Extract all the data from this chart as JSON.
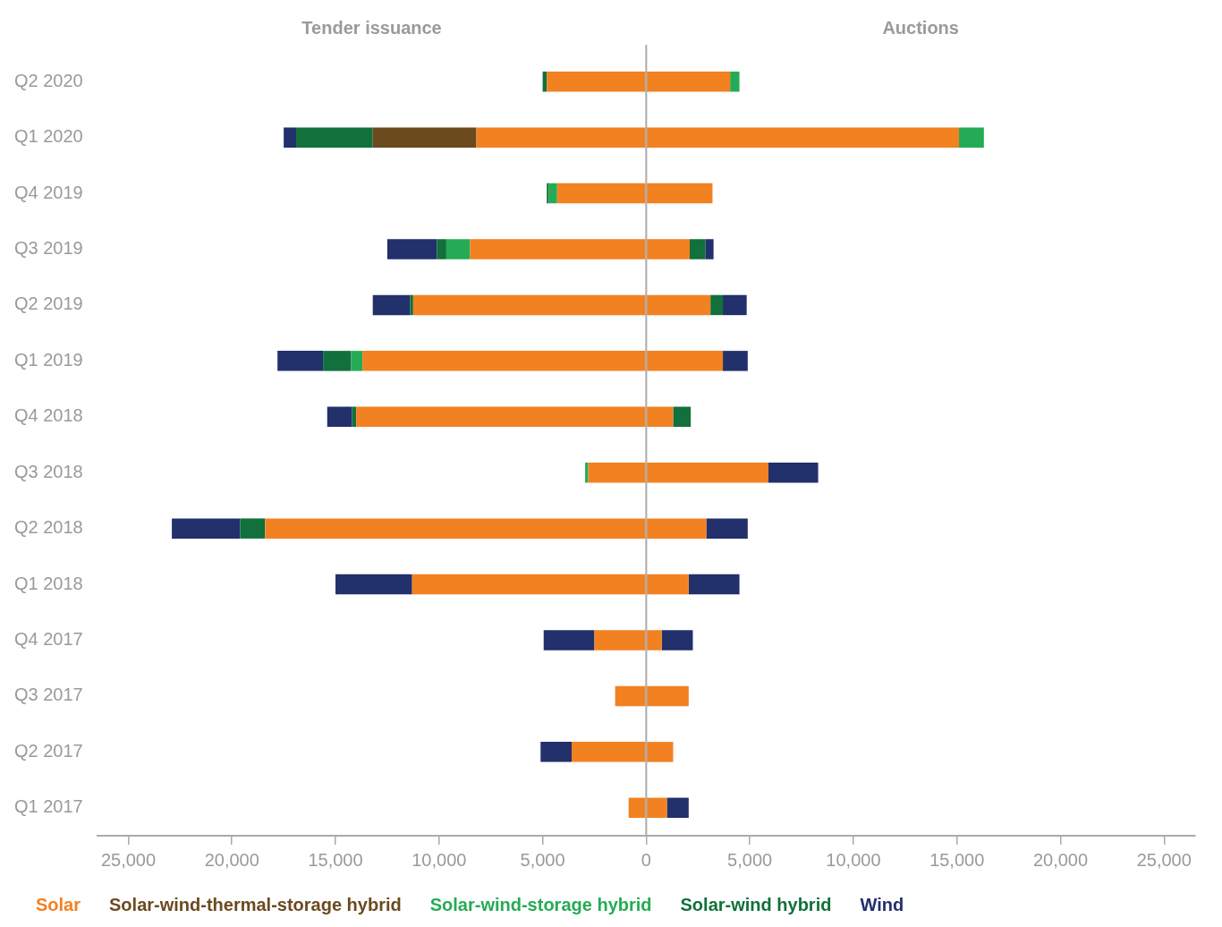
{
  "chart_data": {
    "type": "bar",
    "orientation": "horizontal",
    "stacked": true,
    "annotations": [
      "Tender issuance",
      "Auctions"
    ],
    "categories": [
      "Q2 2020",
      "Q1 2020",
      "Q4 2019",
      "Q3 2019",
      "Q2 2019",
      "Q1 2019",
      "Q4 2018",
      "Q3 2018",
      "Q2 2018",
      "Q1 2018",
      "Q4 2017",
      "Q3 2017",
      "Q2 2017",
      "Q1 2017"
    ],
    "series": [
      {
        "name": "Solar",
        "color": "#f28121",
        "values": [
          -4800,
          -8200,
          -4300,
          -8500,
          -11250,
          -13700,
          -14000,
          -2800,
          -18400,
          -11300,
          -2500,
          -1500,
          -3600,
          -850
        ]
      },
      {
        "name": "Solar-wind-thermal-storage hybrid",
        "color": "#6b4a1e",
        "values": [
          null,
          -5000,
          null,
          null,
          null,
          null,
          null,
          null,
          null,
          null,
          null,
          null,
          null,
          null
        ]
      },
      {
        "name": "Solar-wind-storage hybrid",
        "color": "#25ab55",
        "values": [
          null,
          null,
          -400,
          -1150,
          null,
          -550,
          null,
          -150,
          null,
          null,
          null,
          null,
          null,
          null
        ]
      },
      {
        "name": "Solar-wind hybrid",
        "color": "#11703b",
        "values": [
          -200,
          -3700,
          -100,
          -450,
          -150,
          -1350,
          -200,
          null,
          -1200,
          null,
          null,
          null,
          null,
          null
        ]
      },
      {
        "name": "Wind",
        "color": "#22306b",
        "values": [
          null,
          -600,
          null,
          -2400,
          -1800,
          -2200,
          -1200,
          null,
          -3300,
          -3700,
          -2450,
          null,
          -1500,
          null
        ]
      },
      {
        "color": "#f28121",
        "values": [
          4050,
          15100,
          3200,
          2100,
          3100,
          3700,
          1300,
          5900,
          2900,
          2050,
          750,
          2050,
          1300,
          1000
        ]
      },
      {
        "color": "#25ab55",
        "values": [
          450,
          1200,
          null,
          null,
          null,
          null,
          null,
          null,
          null,
          null,
          null,
          null,
          null,
          null
        ]
      },
      {
        "color": "#11703b",
        "values": [
          null,
          null,
          null,
          750,
          600,
          null,
          850,
          null,
          null,
          null,
          null,
          null,
          null,
          null
        ]
      },
      {
        "color": "#22306b",
        "values": [
          null,
          null,
          null,
          400,
          1150,
          1200,
          null,
          2400,
          2000,
          2450,
          1500,
          null,
          null,
          1050
        ]
      }
    ],
    "xlim": [
      -26500,
      26500
    ],
    "xticks": [
      {
        "value": -25000,
        "label": "25,000"
      },
      {
        "value": -20000,
        "label": "20,000"
      },
      {
        "value": -15000,
        "label": "15,000"
      },
      {
        "value": -10000,
        "label": "10,000"
      },
      {
        "value": -5000,
        "label": "5,000"
      },
      0,
      {
        "value": 5000,
        "label": "5,000"
      },
      {
        "value": 10000,
        "label": "10,000"
      },
      {
        "value": 15000,
        "label": "15,000"
      },
      {
        "value": 20000,
        "label": "20,000"
      },
      {
        "value": 25000,
        "label": "25,000"
      }
    ],
    "ref_lines": [
      {
        "axis": "x",
        "value": 0,
        "color": "#aaaaaa"
      }
    ],
    "grid": false,
    "legend": "bottom"
  }
}
